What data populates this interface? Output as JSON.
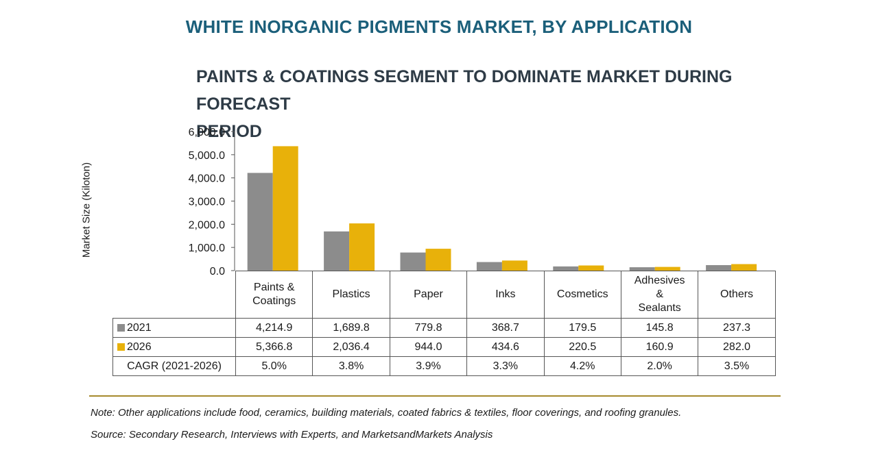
{
  "header": {
    "title": "WHITE INORGANIC PIGMENTS MARKET, BY APPLICATION",
    "subtitle_line1": "PAINTS & COATINGS SEGMENT TO DOMINATE MARKET DURING FORECAST",
    "subtitle_line2": "PERIOD"
  },
  "chart_data": {
    "type": "bar",
    "title": "WHITE INORGANIC PIGMENTS MARKET, BY APPLICATION",
    "subtitle": "PAINTS & COATINGS SEGMENT TO DOMINATE MARKET DURING FORECAST PERIOD",
    "ylabel": "Market Size (Kiloton)",
    "xlabel": "",
    "ylim": [
      0,
      6000
    ],
    "yticks": [
      "0.0",
      "1,000.0",
      "2,000.0",
      "3,000.0",
      "4,000.0",
      "5,000.0",
      "6,000.0"
    ],
    "ytick_values": [
      0,
      1000,
      2000,
      3000,
      4000,
      5000,
      6000
    ],
    "categories": [
      [
        "Paints &",
        "Coatings"
      ],
      [
        "Plastics"
      ],
      [
        "Paper"
      ],
      [
        "Inks"
      ],
      [
        "Cosmetics"
      ],
      [
        "Adhesives",
        "&",
        "Sealants"
      ],
      [
        "Others"
      ]
    ],
    "series": [
      {
        "name": "2021",
        "color": "#8c8c8c",
        "values": [
          4214.9,
          1689.8,
          779.8,
          368.7,
          179.5,
          145.8,
          237.3
        ],
        "labels": [
          "4,214.9",
          "1,689.8",
          "779.8",
          "368.7",
          "179.5",
          "145.8",
          "237.3"
        ]
      },
      {
        "name": "2026",
        "color": "#e8b10a",
        "values": [
          5366.8,
          2036.4,
          944.0,
          434.6,
          220.5,
          160.9,
          282.0
        ],
        "labels": [
          "5,366.8",
          "2,036.4",
          "944.0",
          "434.6",
          "220.5",
          "160.9",
          "282.0"
        ]
      }
    ],
    "cagr": {
      "name": "CAGR (2021-2026)",
      "labels": [
        "5.0%",
        "3.8%",
        "3.9%",
        "3.3%",
        "4.2%",
        "2.0%",
        "3.5%"
      ]
    },
    "legend": "data-table",
    "grid": false
  },
  "footer": {
    "note": "Note: Other applications include food, ceramics, building materials, coated fabrics & textiles, floor coverings, and roofing granules.",
    "source": "Source: Secondary Research, Interviews with Experts, and MarketsandMarkets Analysis"
  }
}
